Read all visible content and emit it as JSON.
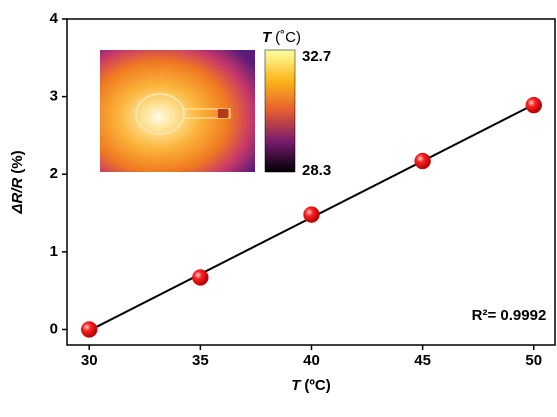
{
  "chart_data": {
    "type": "scatter",
    "x": [
      30,
      35,
      40,
      45,
      50
    ],
    "series": [
      {
        "color": "#e8000b",
        "values": [
          0,
          0.67,
          1.48,
          2.17,
          2.89
        ]
      }
    ],
    "fit_line": true,
    "xlim": [
      29,
      51
    ],
    "xticks": [
      30,
      35,
      40,
      45,
      50
    ],
    "ylim": [
      -0.2,
      4
    ],
    "yticks": [
      0,
      1,
      2,
      3,
      4
    ],
    "xlabel_symbol": "T",
    "xlabel_unit": "(ºC)",
    "ylabel_symbol": "ΔR/R",
    "ylabel_unit": "(%)",
    "annotation": "R²= 0.9992",
    "colorbar": {
      "title_symbol": "T",
      "title_unit": "(˚C)",
      "max": 32.7,
      "min": 28.3
    }
  }
}
